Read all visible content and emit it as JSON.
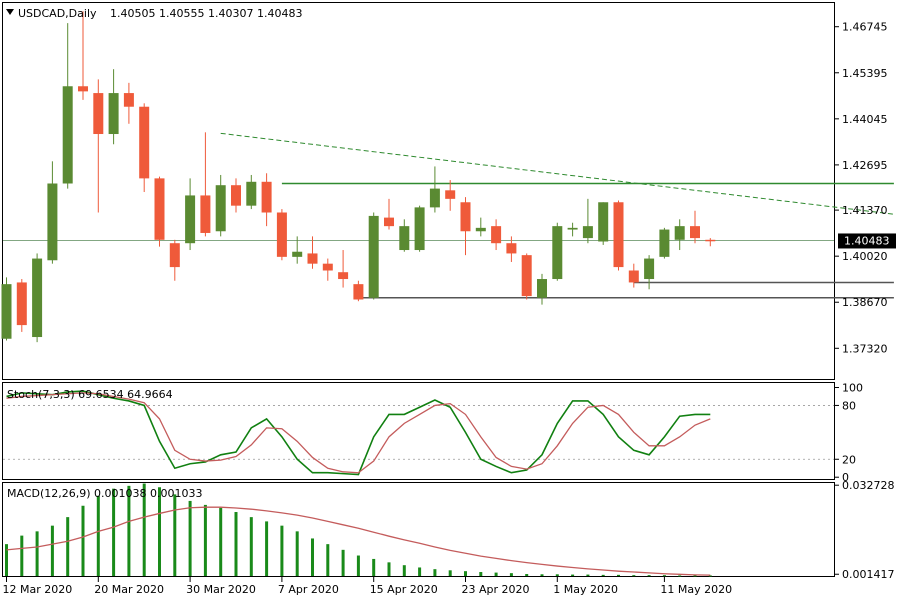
{
  "header": {
    "symbol_label": "USDCAD,Daily",
    "ohlc_label": "1.40505 1.40555 1.40307 1.40483"
  },
  "colors": {
    "bull": "#5a8a32",
    "bear": "#ef5a3a",
    "stoch_main": "#118011",
    "stoch_signal": "#c45c5c",
    "macd_hist": "#1a8a1a",
    "macd_signal": "#c45c5c",
    "trend_dashed": "#2f8a2f",
    "resistance": "#2f8a2f",
    "support": "#555555",
    "price_line": "#5a8a5a"
  },
  "chart_data": [
    {
      "type": "candlestick",
      "title": "USDCAD,Daily",
      "ylim": [
        1.3642,
        1.4744
      ],
      "y_ticks": [
        "1.46745",
        "1.45395",
        "1.44045",
        "1.42695",
        "1.41370",
        "1.40020",
        "1.38670",
        "1.37320"
      ],
      "current_price_label": "1.40483",
      "x_tick_labels": [
        "12 Mar 2020",
        "20 Mar 2020",
        "30 Mar 2020",
        "7 Apr 2020",
        "15 Apr 2020",
        "23 Apr 2020",
        "1 May 2020",
        "11 May 2020"
      ],
      "candles": [
        {
          "o": 1.376,
          "h": 1.394,
          "l": 1.3755,
          "c": 1.392
        },
        {
          "o": 1.3925,
          "h": 1.3935,
          "l": 1.378,
          "c": 1.38
        },
        {
          "o": 1.3765,
          "h": 1.401,
          "l": 1.375,
          "c": 1.3995
        },
        {
          "o": 1.399,
          "h": 1.428,
          "l": 1.398,
          "c": 1.4215
        },
        {
          "o": 1.4215,
          "h": 1.4685,
          "l": 1.42,
          "c": 1.45
        },
        {
          "o": 1.45,
          "h": 1.472,
          "l": 1.446,
          "c": 1.4485
        },
        {
          "o": 1.448,
          "h": 1.452,
          "l": 1.413,
          "c": 1.436
        },
        {
          "o": 1.436,
          "h": 1.455,
          "l": 1.433,
          "c": 1.448
        },
        {
          "o": 1.448,
          "h": 1.451,
          "l": 1.439,
          "c": 1.444
        },
        {
          "o": 1.444,
          "h": 1.445,
          "l": 1.419,
          "c": 1.423
        },
        {
          "o": 1.423,
          "h": 1.4235,
          "l": 1.403,
          "c": 1.405
        },
        {
          "o": 1.404,
          "h": 1.405,
          "l": 1.393,
          "c": 1.397
        },
        {
          "o": 1.404,
          "h": 1.423,
          "l": 1.402,
          "c": 1.418
        },
        {
          "o": 1.418,
          "h": 1.4365,
          "l": 1.406,
          "c": 1.407
        },
        {
          "o": 1.4075,
          "h": 1.424,
          "l": 1.406,
          "c": 1.421
        },
        {
          "o": 1.421,
          "h": 1.423,
          "l": 1.413,
          "c": 1.415
        },
        {
          "o": 1.415,
          "h": 1.424,
          "l": 1.414,
          "c": 1.422
        },
        {
          "o": 1.422,
          "h": 1.4245,
          "l": 1.409,
          "c": 1.413
        },
        {
          "o": 1.413,
          "h": 1.414,
          "l": 1.399,
          "c": 1.4
        },
        {
          "o": 1.4,
          "h": 1.406,
          "l": 1.398,
          "c": 1.4015
        },
        {
          "o": 1.401,
          "h": 1.406,
          "l": 1.3965,
          "c": 1.398
        },
        {
          "o": 1.398,
          "h": 1.3995,
          "l": 1.393,
          "c": 1.396
        },
        {
          "o": 1.3955,
          "h": 1.402,
          "l": 1.391,
          "c": 1.3935
        },
        {
          "o": 1.392,
          "h": 1.393,
          "l": 1.387,
          "c": 1.3875
        },
        {
          "o": 1.388,
          "h": 1.413,
          "l": 1.3875,
          "c": 1.412
        },
        {
          "o": 1.4115,
          "h": 1.417,
          "l": 1.408,
          "c": 1.409
        },
        {
          "o": 1.402,
          "h": 1.411,
          "l": 1.4015,
          "c": 1.409
        },
        {
          "o": 1.402,
          "h": 1.415,
          "l": 1.4015,
          "c": 1.4145
        },
        {
          "o": 1.4145,
          "h": 1.4265,
          "l": 1.413,
          "c": 1.42
        },
        {
          "o": 1.4195,
          "h": 1.4225,
          "l": 1.4135,
          "c": 1.417
        },
        {
          "o": 1.416,
          "h": 1.4175,
          "l": 1.4005,
          "c": 1.4075
        },
        {
          "o": 1.4075,
          "h": 1.4115,
          "l": 1.406,
          "c": 1.4085
        },
        {
          "o": 1.409,
          "h": 1.411,
          "l": 1.402,
          "c": 1.404
        },
        {
          "o": 1.404,
          "h": 1.406,
          "l": 1.3985,
          "c": 1.401
        },
        {
          "o": 1.4005,
          "h": 1.401,
          "l": 1.3875,
          "c": 1.3885
        },
        {
          "o": 1.388,
          "h": 1.395,
          "l": 1.386,
          "c": 1.3935
        },
        {
          "o": 1.3935,
          "h": 1.41,
          "l": 1.393,
          "c": 1.409
        },
        {
          "o": 1.408,
          "h": 1.41,
          "l": 1.406,
          "c": 1.4085
        },
        {
          "o": 1.4055,
          "h": 1.417,
          "l": 1.404,
          "c": 1.409
        },
        {
          "o": 1.4045,
          "h": 1.416,
          "l": 1.4035,
          "c": 1.416
        },
        {
          "o": 1.416,
          "h": 1.4165,
          "l": 1.396,
          "c": 1.397
        },
        {
          "o": 1.396,
          "h": 1.398,
          "l": 1.391,
          "c": 1.3925
        },
        {
          "o": 1.3935,
          "h": 1.4005,
          "l": 1.3905,
          "c": 1.3995
        },
        {
          "o": 1.4,
          "h": 1.4085,
          "l": 1.3995,
          "c": 1.408
        },
        {
          "o": 1.405,
          "h": 1.411,
          "l": 1.402,
          "c": 1.409
        },
        {
          "o": 1.409,
          "h": 1.4135,
          "l": 1.404,
          "c": 1.4055
        },
        {
          "o": 1.405,
          "h": 1.4055,
          "l": 1.4031,
          "c": 1.4048
        }
      ],
      "trendlines": [
        {
          "kind": "dashed-descending",
          "from": {
            "i": 14,
            "v": 1.4362
          },
          "to": {
            "i": 58,
            "v": 1.4125
          }
        },
        {
          "kind": "resistance",
          "from": {
            "i": 18,
            "v": 1.4215
          },
          "to": {
            "i": 58,
            "v": 1.4215
          }
        },
        {
          "kind": "support",
          "from": {
            "i": 23,
            "v": 1.388
          },
          "to": {
            "i": 58,
            "v": 1.388
          }
        },
        {
          "kind": "support",
          "from": {
            "i": 41,
            "v": 1.3925
          },
          "to": {
            "i": 58,
            "v": 1.3925
          }
        }
      ]
    },
    {
      "type": "line",
      "title": "Stoch(7,3,3) 69.6534 64.9664",
      "ylim": [
        -2,
        105
      ],
      "y_ticks": [
        "100",
        "80",
        "20",
        "0"
      ],
      "levels": [
        80,
        20
      ],
      "series": [
        {
          "values": [
            90,
            94,
            93,
            92,
            95,
            96,
            92,
            88,
            85,
            80,
            40,
            10,
            15,
            17,
            25,
            28,
            55,
            65,
            45,
            20,
            5,
            5,
            4,
            3,
            45,
            70,
            70,
            78,
            86,
            78,
            50,
            20,
            12,
            5,
            8,
            25,
            60,
            85,
            85,
            70,
            45,
            30,
            25,
            45,
            68,
            70,
            70
          ]
        },
        {
          "values": [
            88,
            90,
            91,
            92,
            93,
            94,
            93,
            90,
            87,
            83,
            65,
            30,
            20,
            18,
            19,
            23,
            36,
            55,
            54,
            40,
            22,
            10,
            6,
            5,
            18,
            45,
            60,
            70,
            80,
            82,
            70,
            45,
            22,
            12,
            9,
            15,
            35,
            60,
            78,
            80,
            70,
            50,
            35,
            35,
            45,
            58,
            65
          ]
        }
      ]
    },
    {
      "type": "bar",
      "title": "MACD(12,26,9) 0.001038 0.001033",
      "ylim": [
        0.0008,
        0.0335
      ],
      "y_ticks": [
        "0.032728",
        "0.001417"
      ],
      "series": [
        {
          "values": [
            0.012,
            0.015,
            0.0165,
            0.0185,
            0.0215,
            0.0255,
            0.029,
            0.0315,
            0.0325,
            0.0333,
            0.032,
            0.0295,
            0.0272,
            0.0258,
            0.0248,
            0.0233,
            0.0215,
            0.02,
            0.0185,
            0.0165,
            0.014,
            0.012,
            0.01,
            0.008,
            0.0068,
            0.0056,
            0.0046,
            0.0038,
            0.0032,
            0.0028,
            0.0025,
            0.0022,
            0.002,
            0.0018,
            0.0015,
            0.0014,
            0.0014,
            0.0013,
            0.0013,
            0.0012,
            0.0012,
            0.0011,
            0.0011,
            0.0011,
            0.001,
            0.001,
            0.001
          ]
        },
        {
          "values": [
            0.01,
            0.0105,
            0.011,
            0.012,
            0.013,
            0.0145,
            0.0165,
            0.018,
            0.02,
            0.0215,
            0.0228,
            0.024,
            0.0248,
            0.025,
            0.025,
            0.0247,
            0.0243,
            0.0237,
            0.023,
            0.0222,
            0.0212,
            0.02,
            0.0188,
            0.0176,
            0.0162,
            0.0148,
            0.0135,
            0.0123,
            0.011,
            0.0098,
            0.0088,
            0.0078,
            0.007,
            0.0062,
            0.0055,
            0.0049,
            0.0043,
            0.0038,
            0.0033,
            0.0029,
            0.0025,
            0.0022,
            0.0019,
            0.0016,
            0.0014,
            0.0012,
            0.0011
          ]
        }
      ]
    }
  ]
}
